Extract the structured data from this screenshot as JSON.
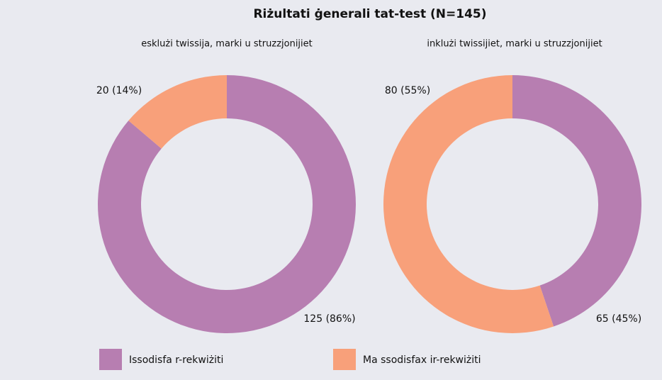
{
  "title": "Riżultati ġenerali tat-test (N=145)",
  "chart_data": [
    {
      "type": "pie",
      "subtitle": "esklużi twissija, marki u struzzjonijiet",
      "categories": [
        "Issodisfa r-rekwiżiti",
        "Ma ssodisfax ir-rekwiżiti"
      ],
      "values": [
        125,
        20
      ],
      "value_labels": [
        "125 (86%)",
        "20 (14%)"
      ],
      "colors": [
        "#b77eb1",
        "#f8a07a"
      ]
    },
    {
      "type": "pie",
      "subtitle": "inklużi twissijiet, marki u struzzjonijiet",
      "categories": [
        "Issodisfa r-rekwiżiti",
        "Ma ssodisfax ir-rekwiżiti"
      ],
      "values": [
        65,
        80
      ],
      "value_labels": [
        "65 (45%)",
        "80 (55%)"
      ],
      "colors": [
        "#b77eb1",
        "#f8a07a"
      ]
    }
  ]
}
